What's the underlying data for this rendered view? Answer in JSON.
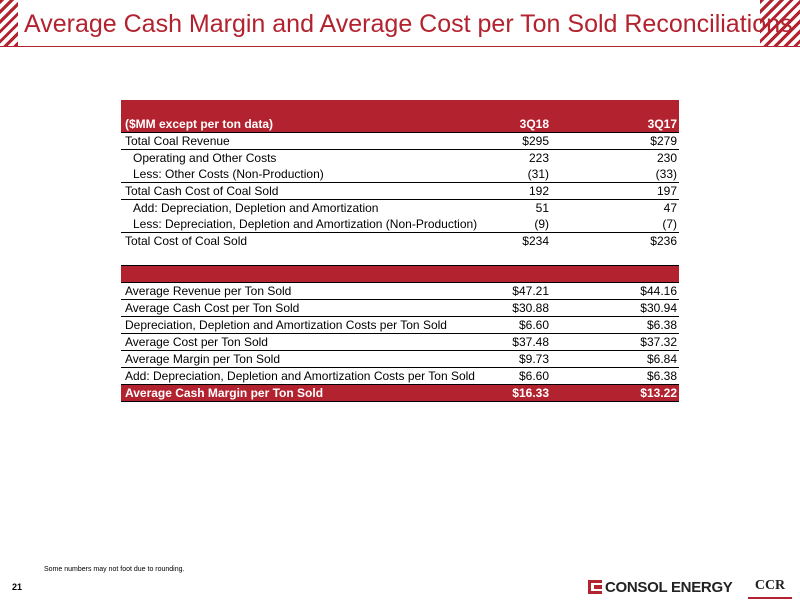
{
  "slide": {
    "title": "Average Cash Margin and Average Cost per Ton Sold Reconciliations",
    "footnote": "Some numbers may not foot due to rounding.",
    "page_number": "21",
    "brand_name": "CONSOL ENERGY",
    "brand_secondary": "CCR",
    "brand_color": "#b3222f"
  },
  "table": {
    "header": {
      "label": "($MM except per ton data)",
      "col1": "3Q18",
      "col2": "3Q17"
    },
    "section1": [
      {
        "label": "Total Coal Revenue",
        "col1": "$295",
        "col2": "$279"
      },
      {
        "label": "Operating and Other Costs",
        "col1": "223",
        "col2": "230"
      },
      {
        "label": "Less:  Other Costs (Non-Production)",
        "col1": "(31)",
        "col2": "(33)"
      },
      {
        "label": "Total Cash Cost of Coal Sold",
        "col1": "192",
        "col2": "197"
      },
      {
        "label": "Add:  Depreciation, Depletion and Amortization",
        "col1": "51",
        "col2": "47"
      },
      {
        "label": "Less:  Depreciation, Depletion and Amortization (Non-Production)",
        "col1": "(9)",
        "col2": "(7)"
      },
      {
        "label": "Total Cost of Coal Sold",
        "col1": "$234",
        "col2": "$236"
      }
    ],
    "section2": [
      {
        "label": "Average Revenue per Ton Sold",
        "col1": "$47.21",
        "col2": "$44.16"
      },
      {
        "label": "Average Cash Cost per Ton Sold",
        "col1": "$30.88",
        "col2": "$30.94"
      },
      {
        "label": "Depreciation, Depletion and Amortization Costs per Ton Sold",
        "col1": "$6.60",
        "col2": "$6.38"
      },
      {
        "label": "Average Cost per Ton Sold",
        "col1": "$37.48",
        "col2": "$37.32"
      },
      {
        "label": "Average Margin per Ton Sold",
        "col1": "$9.73",
        "col2": "$6.84"
      },
      {
        "label": "Add:  Depreciation, Depletion and Amortization Costs per Ton Sold",
        "col1": "$6.60",
        "col2": "$6.38"
      },
      {
        "label": "Average Cash Margin per Ton Sold",
        "col1": "$16.33",
        "col2": "$13.22"
      }
    ]
  }
}
